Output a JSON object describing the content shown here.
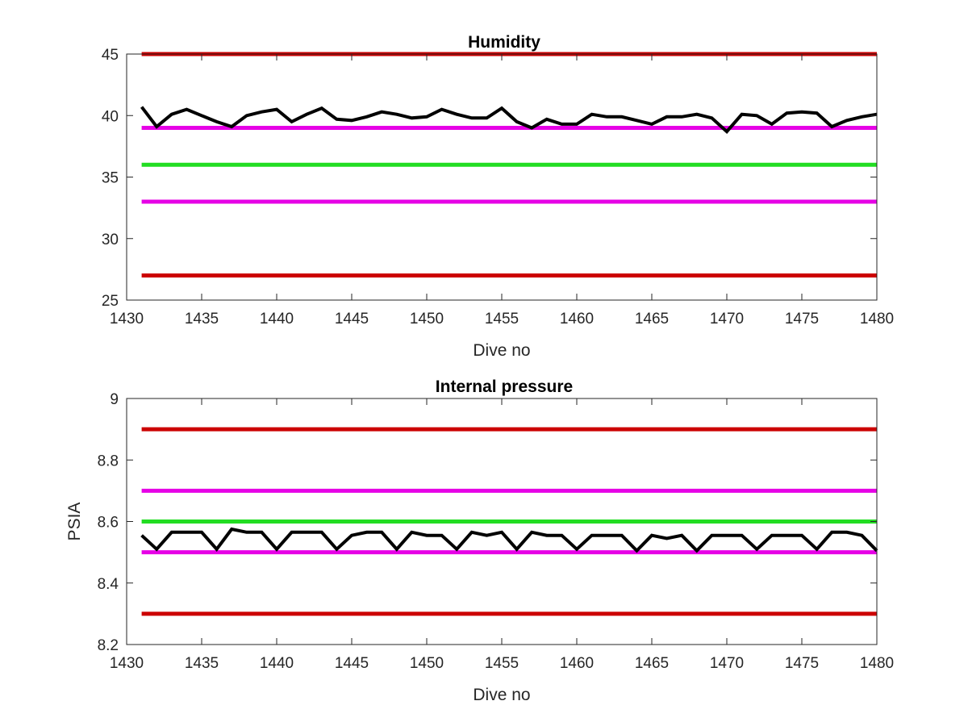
{
  "chart_data": [
    {
      "type": "line",
      "title": "Humidity",
      "xlabel": "Dive no",
      "ylabel": "",
      "xlim": [
        1430,
        1480
      ],
      "ylim": [
        25,
        45
      ],
      "xticks": [
        "1430",
        "1435",
        "1440",
        "1445",
        "1450",
        "1455",
        "1460",
        "1465",
        "1470",
        "1475",
        "1480"
      ],
      "yticks": [
        "25",
        "30",
        "35",
        "40",
        "45"
      ],
      "grid": false,
      "thresholds": [
        {
          "value": 45,
          "color": "#cc0000"
        },
        {
          "value": 39,
          "color": "#e600e6"
        },
        {
          "value": 36,
          "color": "#22dd22"
        },
        {
          "value": 33,
          "color": "#e600e6"
        },
        {
          "value": 27,
          "color": "#cc0000"
        }
      ],
      "series": [
        {
          "color": "#000000",
          "x": [
            1431,
            1432,
            1433,
            1434,
            1435,
            1436,
            1437,
            1438,
            1439,
            1440,
            1441,
            1442,
            1443,
            1444,
            1445,
            1446,
            1447,
            1448,
            1449,
            1450,
            1451,
            1452,
            1453,
            1454,
            1455,
            1456,
            1457,
            1458,
            1459,
            1460,
            1461,
            1462,
            1463,
            1464,
            1465,
            1466,
            1467,
            1468,
            1469,
            1470,
            1471,
            1472,
            1473,
            1474,
            1475,
            1476,
            1477,
            1478,
            1479,
            1480
          ],
          "y": [
            40.7,
            39.1,
            40.1,
            40.5,
            40.0,
            39.5,
            39.1,
            40.0,
            40.3,
            40.5,
            39.5,
            40.1,
            40.6,
            39.7,
            39.6,
            39.9,
            40.3,
            40.1,
            39.8,
            39.9,
            40.5,
            40.1,
            39.8,
            39.8,
            40.6,
            39.5,
            39.0,
            39.7,
            39.3,
            39.3,
            40.1,
            39.9,
            39.9,
            39.6,
            39.3,
            39.9,
            39.9,
            40.1,
            39.8,
            38.7,
            40.1,
            40.0,
            39.3,
            40.2,
            40.3,
            40.2,
            39.1,
            39.6,
            39.9,
            40.1
          ]
        }
      ]
    },
    {
      "type": "line",
      "title": "Internal pressure",
      "xlabel": "Dive no",
      "ylabel": "PSIA",
      "xlim": [
        1430,
        1480
      ],
      "ylim": [
        8.2,
        9.0
      ],
      "xticks": [
        "1430",
        "1435",
        "1440",
        "1445",
        "1450",
        "1455",
        "1460",
        "1465",
        "1470",
        "1475",
        "1480"
      ],
      "yticks": [
        "8.2",
        "8.4",
        "8.6",
        "8.8",
        "9"
      ],
      "grid": false,
      "thresholds": [
        {
          "value": 8.9,
          "color": "#cc0000"
        },
        {
          "value": 8.7,
          "color": "#e600e6"
        },
        {
          "value": 8.6,
          "color": "#22dd22"
        },
        {
          "value": 8.5,
          "color": "#e600e6"
        },
        {
          "value": 8.3,
          "color": "#cc0000"
        }
      ],
      "series": [
        {
          "color": "#000000",
          "x": [
            1431,
            1432,
            1433,
            1434,
            1435,
            1436,
            1437,
            1438,
            1439,
            1440,
            1441,
            1442,
            1443,
            1444,
            1445,
            1446,
            1447,
            1448,
            1449,
            1450,
            1451,
            1452,
            1453,
            1454,
            1455,
            1456,
            1457,
            1458,
            1459,
            1460,
            1461,
            1462,
            1463,
            1464,
            1465,
            1466,
            1467,
            1468,
            1469,
            1470,
            1471,
            1472,
            1473,
            1474,
            1475,
            1476,
            1477,
            1478,
            1479,
            1480
          ],
          "y": [
            8.555,
            8.51,
            8.565,
            8.565,
            8.565,
            8.51,
            8.575,
            8.565,
            8.565,
            8.51,
            8.565,
            8.565,
            8.565,
            8.51,
            8.555,
            8.565,
            8.565,
            8.51,
            8.565,
            8.555,
            8.555,
            8.51,
            8.565,
            8.555,
            8.565,
            8.51,
            8.565,
            8.555,
            8.555,
            8.51,
            8.555,
            8.555,
            8.555,
            8.505,
            8.555,
            8.545,
            8.555,
            8.505,
            8.555,
            8.555,
            8.555,
            8.51,
            8.555,
            8.555,
            8.555,
            8.51,
            8.565,
            8.565,
            8.555,
            8.505
          ]
        }
      ]
    }
  ]
}
